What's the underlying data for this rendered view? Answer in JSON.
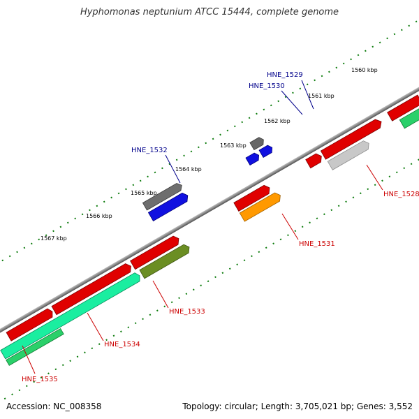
{
  "title": "Hyphomonas neptunium ATCC 15444, complete genome",
  "footer": {
    "accession": "Accession: NC_008358",
    "summary": "Topology: circular; Length: 3,705,021 bp; Genes: 3,552"
  },
  "colors": {
    "backbone": "#8a8a8a",
    "tick": "#0a7a0a",
    "label_forward": "#00008b",
    "label_reverse": "#cc0000"
  },
  "ticks": [
    "1560 kbp",
    "1561 kbp",
    "1562 kbp",
    "1563 kbp",
    "1564 kbp",
    "1565 kbp",
    "1566 kbp",
    "1567 kbp"
  ],
  "genes": [
    {
      "id": "HNE_1528",
      "labeled": true
    },
    {
      "id": "HNE_1529",
      "labeled": true
    },
    {
      "id": "HNE_1530",
      "labeled": true
    },
    {
      "id": "HNE_1531",
      "labeled": true
    },
    {
      "id": "HNE_1532",
      "labeled": true
    },
    {
      "id": "HNE_1533",
      "labeled": true
    },
    {
      "id": "HNE_1534",
      "labeled": true
    },
    {
      "id": "HNE_1535",
      "labeled": true
    }
  ]
}
